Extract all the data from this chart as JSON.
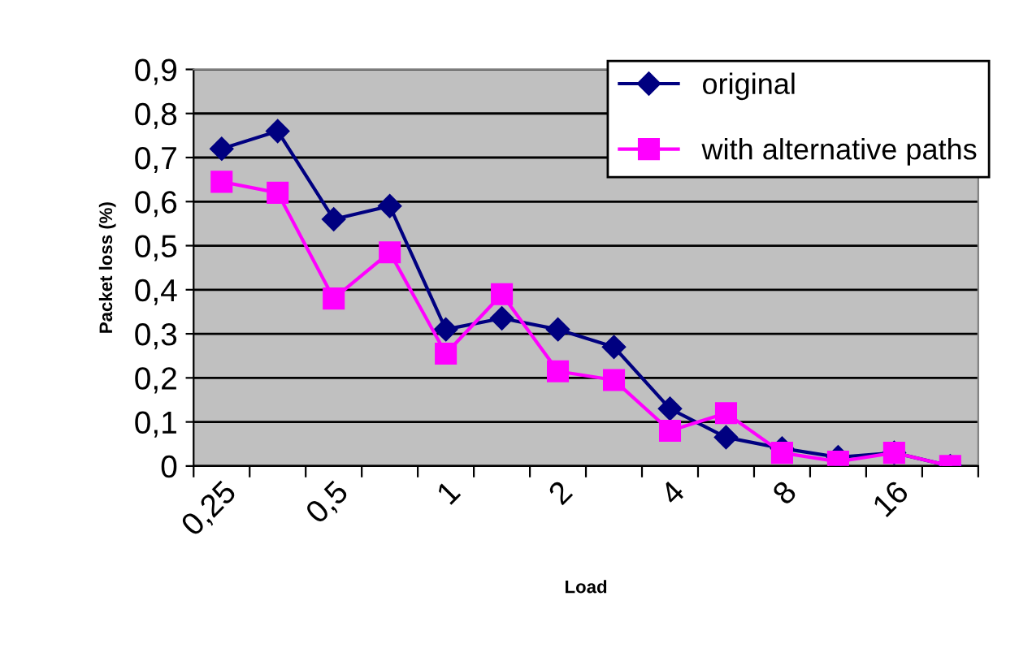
{
  "chart_data": {
    "type": "line",
    "xlabel": "Load",
    "ylabel": "Packet loss (%)",
    "categories": [
      "0,25",
      null,
      "0,5",
      null,
      "1",
      null,
      "2",
      null,
      "4",
      null,
      "8",
      null,
      "16",
      null
    ],
    "series": [
      {
        "name": "original",
        "color": "#000080",
        "marker": "diamond",
        "values": [
          0.72,
          0.76,
          0.56,
          0.59,
          0.31,
          0.335,
          0.31,
          0.27,
          0.13,
          0.065,
          0.04,
          0.02,
          0.03,
          0.0
        ]
      },
      {
        "name": "with alternative paths",
        "color": "#ff00ff",
        "marker": "square",
        "values": [
          0.645,
          0.62,
          0.38,
          0.485,
          0.255,
          0.39,
          0.215,
          0.195,
          0.08,
          0.12,
          0.03,
          0.01,
          0.03,
          0.0
        ]
      }
    ],
    "ylim": [
      0,
      0.9
    ],
    "yticks": [
      {
        "value": 0,
        "label": "0"
      },
      {
        "value": 0.1,
        "label": "0,1"
      },
      {
        "value": 0.2,
        "label": "0,2"
      },
      {
        "value": 0.3,
        "label": "0,3"
      },
      {
        "value": 0.4,
        "label": "0,4"
      },
      {
        "value": 0.5,
        "label": "0,5"
      },
      {
        "value": 0.6,
        "label": "0,6"
      },
      {
        "value": 0.7,
        "label": "0,7"
      },
      {
        "value": 0.8,
        "label": "0,8"
      },
      {
        "value": 0.9,
        "label": "0,9"
      }
    ],
    "grid": "y",
    "legend": "top right"
  }
}
